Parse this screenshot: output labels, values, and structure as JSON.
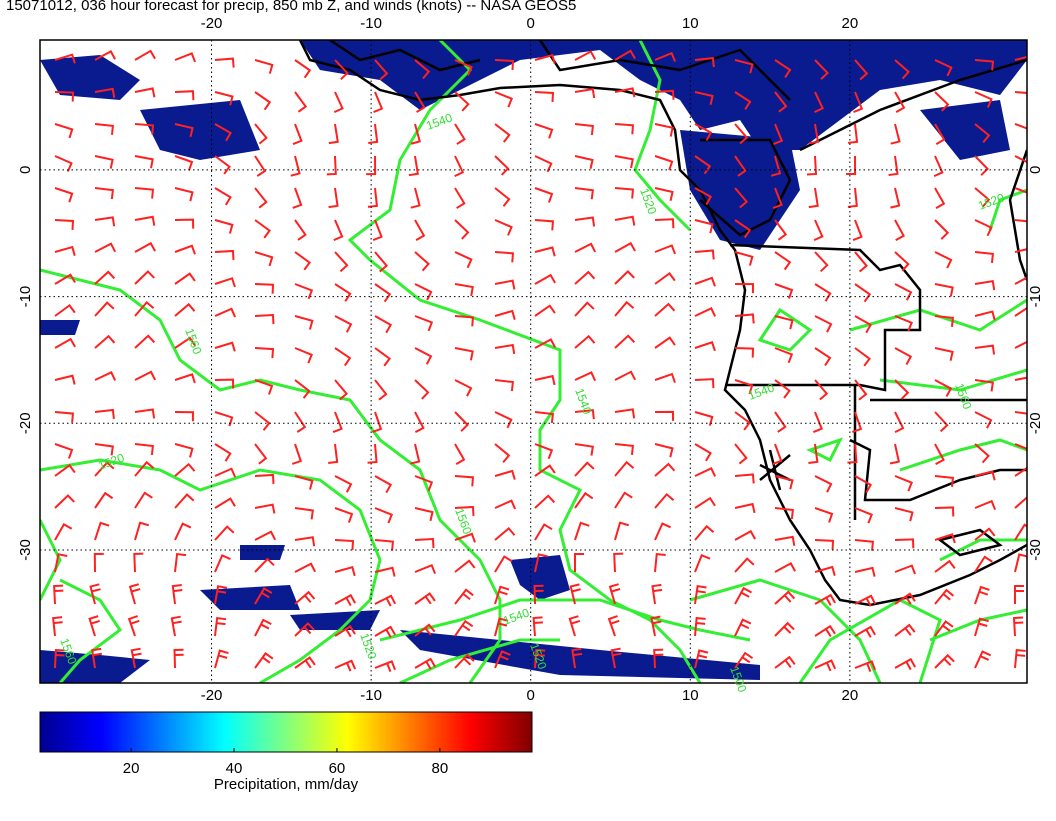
{
  "title": "15071012, 036 hour forecast for precip, 850 mb Z, and winds (knots) -- NASA GEOS5",
  "map": {
    "lon_range": [
      -30.75,
      31.1
    ],
    "lat_range": [
      10.25,
      -40.5
    ],
    "lon_ticks": [
      -20,
      -10,
      0,
      10,
      20
    ],
    "lat_ticks": [
      0,
      -10,
      -20,
      -30
    ],
    "contour_labels": [
      "1540",
      "1520",
      "1560",
      "1520",
      "1540",
      "1560",
      "1540",
      "1560",
      "1520",
      "1540",
      "1520",
      "1500",
      "1520",
      "1560"
    ]
  },
  "colorbar": {
    "range": [
      2.3,
      97.9
    ],
    "ticks": [
      20,
      40,
      60,
      80
    ],
    "label": "Precipitation, mm/day"
  }
}
